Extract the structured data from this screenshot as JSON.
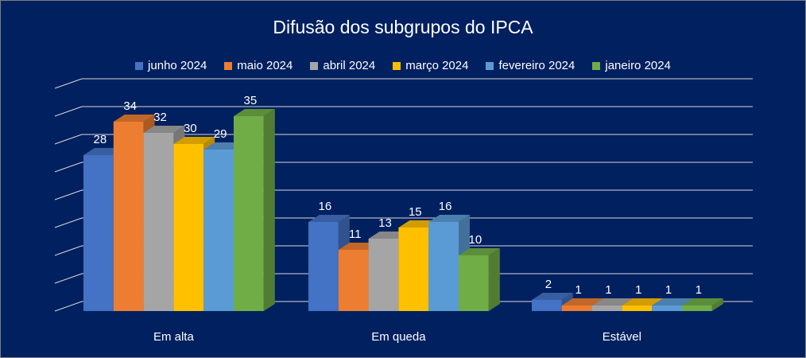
{
  "chart_data": {
    "type": "bar",
    "title": "Difusão dos subgrupos do IPCA",
    "categories": [
      "Em alta",
      "Em queda",
      "Estável"
    ],
    "series": [
      {
        "name": "junho 2024",
        "values": [
          28,
          16,
          2
        ],
        "color": "#4472c4"
      },
      {
        "name": "maio 2024",
        "values": [
          34,
          11,
          1
        ],
        "color": "#ed7d31"
      },
      {
        "name": "abril 2024",
        "values": [
          32,
          13,
          1
        ],
        "color": "#a5a5a5"
      },
      {
        "name": "março 2024",
        "values": [
          30,
          15,
          1
        ],
        "color": "#ffc000"
      },
      {
        "name": "fevereiro 2024",
        "values": [
          29,
          16,
          1
        ],
        "color": "#5b9bd5"
      },
      {
        "name": "janeiro 2024",
        "values": [
          35,
          10,
          1
        ],
        "color": "#70ad47"
      }
    ],
    "ylim": [
      0,
      40
    ],
    "grid": true,
    "legend_position": "top",
    "style": "3d-clustered-column",
    "background": "#002060"
  }
}
